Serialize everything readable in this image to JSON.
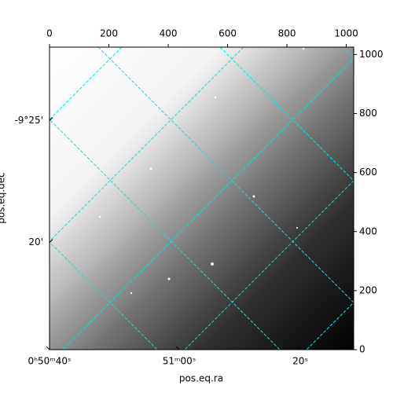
{
  "chart_data": {
    "type": "image",
    "xlabel": "pos.eq.ra",
    "ylabel": "pos.eq.dec",
    "xlim": [
      0,
      1025
    ],
    "ylim": [
      0,
      1025
    ],
    "xticks": [
      0,
      200,
      400,
      600,
      800,
      1000
    ],
    "yticks": [
      0,
      200,
      400,
      600,
      800,
      1000
    ],
    "ra_ticks": [
      {
        "value": 0,
        "label": "0ʰ50ᵐ40ˢ"
      },
      {
        "value": 437,
        "label": "51ᵐ00ˢ"
      },
      {
        "value": 845,
        "label": "20ˢ"
      }
    ],
    "dec_ticks": [
      {
        "value": 776,
        "label": "-9°25'"
      },
      {
        "value": 363,
        "label": "20'"
      }
    ],
    "grid_color": "#00e5e5"
  }
}
